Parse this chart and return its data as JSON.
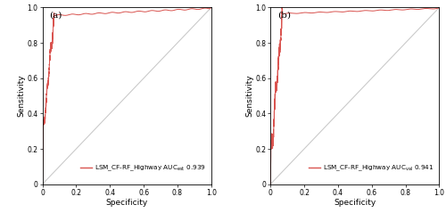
{
  "panel_a": {
    "label": "(a)",
    "legend_text": "LSM_CF-RF_Highway AUC",
    "legend_subscript": "est",
    "auc_value": "0.939",
    "line_color": "#d9534f",
    "line_width": 0.7
  },
  "panel_b": {
    "label": "(b)",
    "legend_text": "LSM_CF-RF_Highway AUC",
    "legend_subscript": "val",
    "auc_value": "0.941",
    "line_color": "#d9534f",
    "line_width": 0.7
  },
  "xlabel": "Specificity",
  "ylabel": "Sensitivity",
  "tick_labels": [
    "0",
    "0.2",
    "0.4",
    "0.6",
    "0.8",
    "1.0"
  ],
  "tick_values": [
    0.0,
    0.2,
    0.4,
    0.6,
    0.8,
    1.0
  ],
  "diag_color": "#c8c8c8",
  "background_color": "#ffffff",
  "tick_fontsize": 5.5,
  "label_fontsize": 6.5,
  "legend_fontsize": 5.2,
  "panel_label_fontsize": 7.5
}
